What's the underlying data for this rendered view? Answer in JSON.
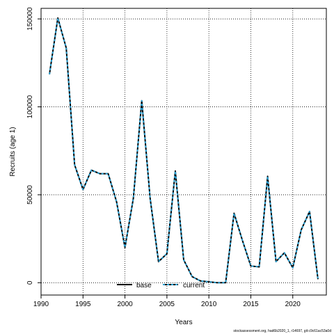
{
  "chart_data": {
    "type": "line",
    "xlabel": "Years",
    "ylabel": "Recruits (age 1)",
    "xlim": [
      1990,
      2024
    ],
    "ylim": [
      -7000,
      156000
    ],
    "x_ticks": [
      1990,
      1995,
      2000,
      2005,
      2010,
      2015,
      2020
    ],
    "y_ticks": [
      0,
      50000,
      100000,
      150000
    ],
    "grid": true,
    "grid_style": "dotted",
    "legend_position": "bottom-center",
    "x": [
      1991,
      1992,
      1993,
      1994,
      1995,
      1996,
      1997,
      1998,
      1999,
      2000,
      2001,
      2002,
      2003,
      2004,
      2005,
      2006,
      2007,
      2008,
      2009,
      2010,
      2011,
      2012,
      2013,
      2014,
      2015,
      2016,
      2017,
      2018,
      2019,
      2020,
      2021,
      2022,
      2023
    ],
    "series": [
      {
        "name": "base",
        "color": "#000000",
        "style": "solid",
        "values": [
          118500,
          150500,
          133500,
          67000,
          53000,
          64000,
          62000,
          62000,
          46000,
          20000,
          48000,
          103500,
          48000,
          12000,
          16500,
          63500,
          13000,
          3500,
          1000,
          500,
          0,
          0,
          39500,
          24000,
          9500,
          9000,
          60500,
          12000,
          17000,
          8500,
          30000,
          40500,
          2000
        ]
      },
      {
        "name": "current",
        "color": "#2aa1d3",
        "style": "dashed",
        "values": [
          118500,
          150500,
          133500,
          67000,
          53000,
          64000,
          62000,
          62000,
          46000,
          20000,
          48000,
          103500,
          48000,
          12000,
          16500,
          63500,
          13000,
          3500,
          1000,
          500,
          0,
          0,
          39500,
          24000,
          9500,
          9000,
          60500,
          12000,
          17000,
          8500,
          30000,
          40500,
          2000
        ]
      }
    ]
  },
  "footer": {
    "caption": "stockassessment.org, had6b2020_1, r14697, git:c9c61ac53a0d"
  }
}
